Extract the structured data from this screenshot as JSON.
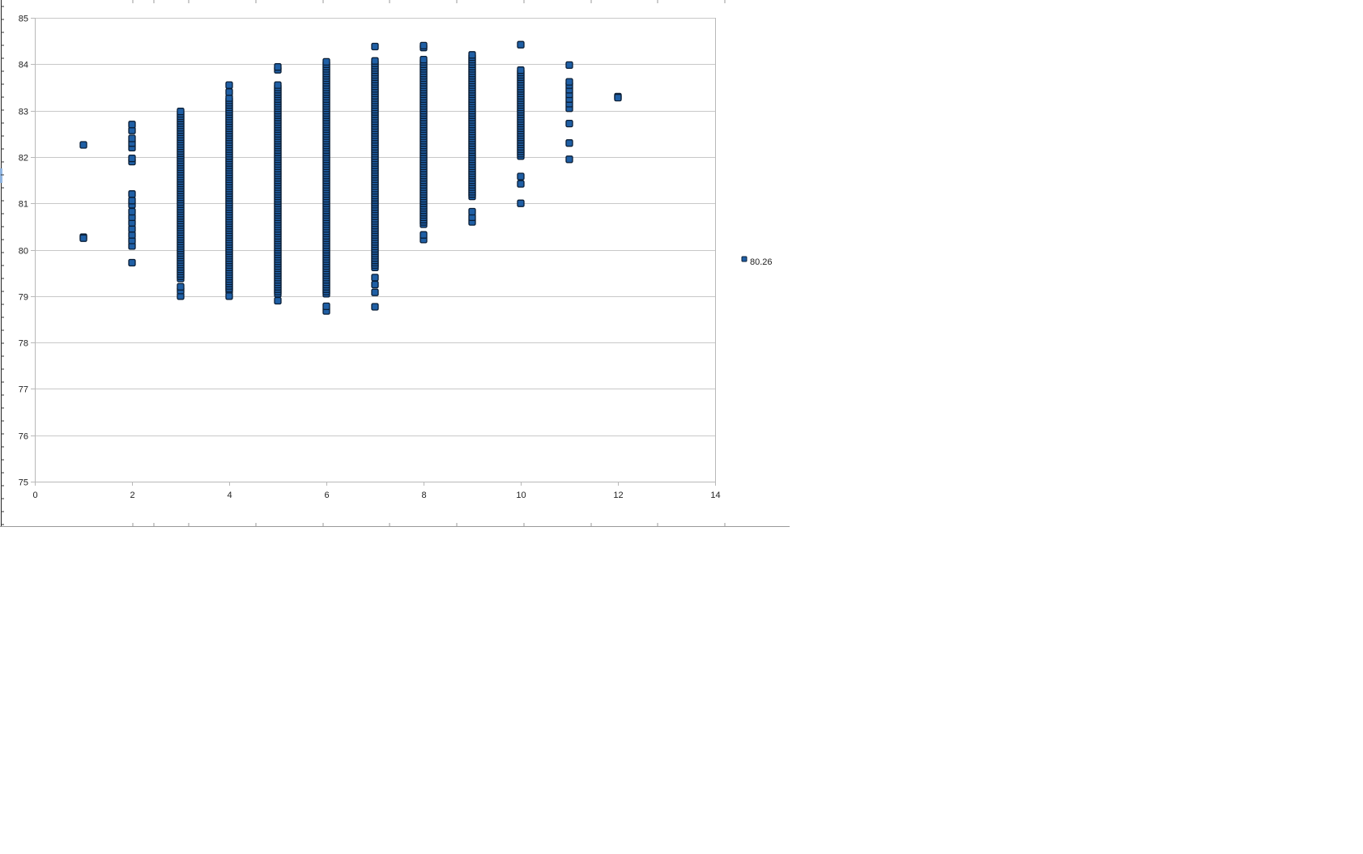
{
  "colors": {
    "marker_fill": "#1f5fa5",
    "marker_stroke": "#0a1e36",
    "gridline": "#c8c8c8",
    "axis": "#b8b8b8",
    "frame": "#9a9a9a"
  },
  "chart_data": {
    "type": "scatter",
    "title": "",
    "xlabel": "",
    "ylabel": "",
    "xlim": [
      0,
      14
    ],
    "ylim": [
      75,
      85
    ],
    "x_ticks": [
      "0",
      "2",
      "4",
      "6",
      "8",
      "10",
      "12",
      "14"
    ],
    "y_ticks": [
      "75",
      "76",
      "77",
      "78",
      "79",
      "80",
      "81",
      "82",
      "83",
      "84",
      "85"
    ],
    "grid": "horizontal",
    "legend_position": "right",
    "marker": "square",
    "series": [
      {
        "name": "80.26",
        "columns": [
          {
            "x": 1,
            "ys": [
              82.26,
              80.27,
              80.25
            ]
          },
          {
            "x": 2,
            "ys": [
              79.72,
              80.08,
              80.2,
              80.32,
              80.45,
              80.58,
              80.7,
              80.82,
              80.97,
              81.06,
              81.2,
              81.9,
              81.97,
              82.2,
              82.3,
              82.4,
              82.57,
              82.7
            ]
          },
          {
            "x": 3,
            "range": [
              79.38,
              83.0
            ],
            "step": 0.05,
            "ys": [
              79.0,
              79.12,
              79.2
            ]
          },
          {
            "x": 4,
            "range": [
              79.12,
              83.28
            ],
            "step": 0.05,
            "ys": [
              79.0,
              83.4,
              83.55
            ]
          },
          {
            "x": 5,
            "range": [
              79.05,
              83.58
            ],
            "step": 0.05,
            "ys": [
              78.9,
              83.88,
              83.94
            ]
          },
          {
            "x": 6,
            "range": [
              79.05,
              84.07
            ],
            "step": 0.05,
            "ys": [
              78.68,
              78.78
            ]
          },
          {
            "x": 7,
            "range": [
              79.62,
              84.07
            ],
            "step": 0.05,
            "ys": [
              78.77,
              79.08,
              79.25,
              79.4,
              84.38
            ]
          },
          {
            "x": 8,
            "range": [
              80.55,
              84.1
            ],
            "step": 0.05,
            "ys": [
              80.22,
              80.32,
              84.36,
              84.4
            ]
          },
          {
            "x": 9,
            "range": [
              81.15,
              84.2
            ],
            "step": 0.05,
            "ys": [
              80.6,
              80.7,
              80.82
            ]
          },
          {
            "x": 10,
            "range": [
              82.02,
              83.88
            ],
            "step": 0.05,
            "ys": [
              81.0,
              81.42,
              81.58,
              84.42
            ]
          },
          {
            "x": 11,
            "ys": [
              81.95,
              82.3,
              82.72,
              83.05,
              83.15,
              83.25,
              83.35,
              83.45,
              83.55,
              83.62,
              83.98
            ]
          },
          {
            "x": 12,
            "ys": [
              83.3,
              83.28
            ]
          }
        ]
      }
    ]
  }
}
